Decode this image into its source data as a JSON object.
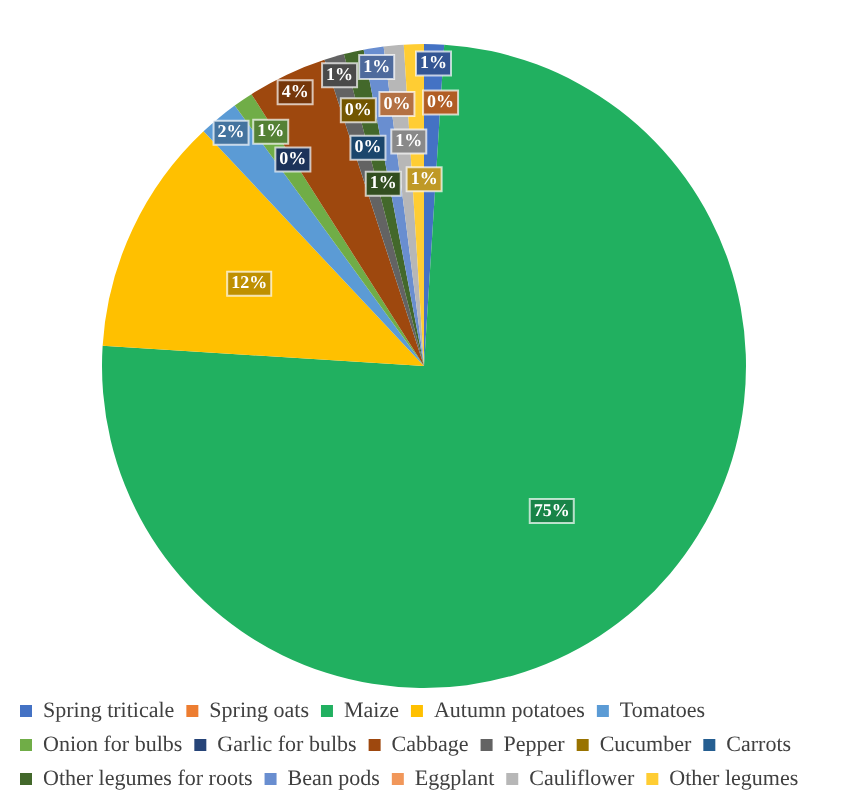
{
  "chart_data": {
    "type": "pie",
    "categories": [
      "Spring triticale",
      "Spring oats",
      "Maize",
      "Autumn potatoes",
      "Tomatoes",
      "Onion for bulbs",
      "Garlic for bulbs",
      "Cabbage",
      "Pepper",
      "Cucumber",
      "Carrots",
      "Other legumes for roots",
      "Bean pods",
      "Eggplant",
      "Cauliflower",
      "Other legumes"
    ],
    "values": [
      1,
      0,
      75,
      12,
      2,
      1,
      0,
      4,
      1,
      0,
      0,
      1,
      1,
      0,
      1,
      1
    ],
    "value_labels": [
      "1%",
      "0%",
      "75%",
      "12%",
      "2%",
      "1%",
      "0%",
      "4%",
      "1%",
      "0%",
      "0%",
      "1%",
      "1%",
      "0%",
      "1%",
      "1%"
    ],
    "colors": [
      "#4472c4",
      "#ed7d31",
      "#21b060",
      "#ffc000",
      "#5b9bd5",
      "#70ad47",
      "#264478",
      "#9e480e",
      "#636363",
      "#997300",
      "#255e91",
      "#43682b",
      "#698ed0",
      "#f1975a",
      "#b7b7b7",
      "#ffcd33"
    ],
    "legend": "bottom"
  }
}
